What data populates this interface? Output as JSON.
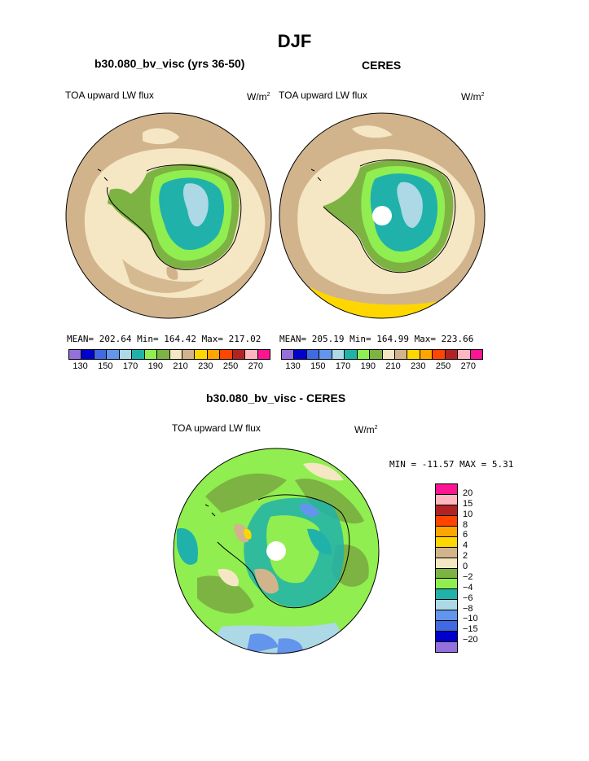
{
  "title": "DJF",
  "panels": {
    "left": {
      "title": "b30.080_bv_visc (yrs 36-50)",
      "variable": "TOA upward LW flux",
      "units_base": "W/m",
      "units_exp": "2",
      "stats": "MEAN= 202.64  Min= 164.42  Max= 217.02"
    },
    "right": {
      "title": "CERES",
      "variable": "TOA upward LW flux",
      "units_base": "W/m",
      "units_exp": "2",
      "stats": "MEAN= 205.19  Min= 164.99  Max= 223.66"
    },
    "diff": {
      "title": "b30.080_bv_visc - CERES",
      "variable": "TOA upward LW flux",
      "units_base": "W/m",
      "units_exp": "2",
      "stats": "MIN = -11.57 MAX =    5.31"
    }
  },
  "colorbar_abs": {
    "colors": [
      "#9370db",
      "#0000cd",
      "#4169e1",
      "#6495ed",
      "#add8e6",
      "#20b2aa",
      "#90ee50",
      "#7cb342",
      "#f5e6c4",
      "#d2b48c",
      "#ffd700",
      "#ffa500",
      "#ff4500",
      "#b22222",
      "#ffb6c1",
      "#ff1493"
    ],
    "labels": [
      "130",
      "150",
      "170",
      "190",
      "210",
      "230",
      "250",
      "270"
    ]
  },
  "colorbar_diff": {
    "colors": [
      "#ff1493",
      "#ffb6c1",
      "#b22222",
      "#ff4500",
      "#ffa500",
      "#ffd700",
      "#d2b48c",
      "#f5e6c4",
      "#7cb342",
      "#90ee50",
      "#20b2aa",
      "#add8e6",
      "#6495ed",
      "#4169e1",
      "#0000cd",
      "#9370db"
    ],
    "labels": [
      "20",
      "15",
      "10",
      "8",
      "6",
      "4",
      "2",
      "0",
      "−2",
      "−4",
      "−6",
      "−8",
      "−10",
      "−15",
      "−20"
    ]
  }
}
